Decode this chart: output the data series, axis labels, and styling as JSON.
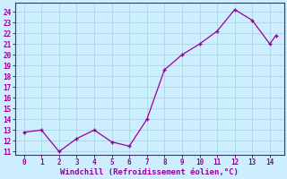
{
  "x": [
    0,
    1,
    2,
    3,
    4,
    5,
    6,
    7,
    8,
    9,
    10,
    11,
    12,
    13,
    14
  ],
  "y": [
    12.8,
    13.0,
    11.0,
    12.2,
    13.0,
    11.9,
    11.5,
    14.0,
    18.6,
    20.0,
    21.0,
    22.2,
    24.2,
    23.2,
    21.0
  ],
  "x_extra": [
    14.35
  ],
  "y_extra": [
    21.8
  ],
  "line_color": "#990099",
  "marker": "+",
  "background_color": "#cceeff",
  "grid_color": "#aadddd",
  "xlabel": "Windchill (Refroidissement éolien,°C)",
  "ylim": [
    10.7,
    24.8
  ],
  "xlim": [
    -0.5,
    14.8
  ],
  "yticks": [
    11,
    12,
    13,
    14,
    15,
    16,
    17,
    18,
    19,
    20,
    21,
    22,
    23,
    24
  ],
  "xticks": [
    0,
    1,
    2,
    3,
    4,
    5,
    6,
    7,
    8,
    9,
    10,
    11,
    12,
    13,
    14
  ],
  "tick_color": "#990099",
  "font_color": "#990099",
  "tick_labelsize": 5.5,
  "xlabel_fontsize": 6.5
}
